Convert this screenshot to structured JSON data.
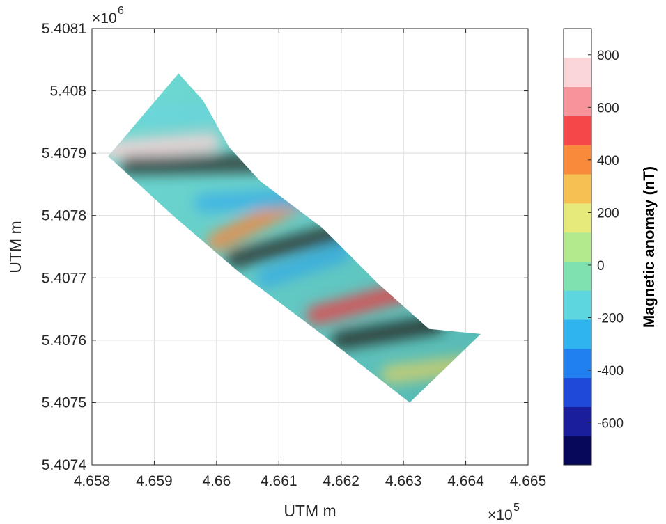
{
  "chart_data": {
    "type": "heatmap",
    "title": "",
    "xlabel": "UTM m",
    "ylabel": "UTM m",
    "x_exponent_base": "×10",
    "x_exponent_power": "5",
    "y_exponent_base": "×10",
    "y_exponent_power": "6",
    "xlim": [
      465800,
      466500
    ],
    "ylim": [
      5407400,
      5408100
    ],
    "x_ticks": [
      465800,
      465900,
      466000,
      466100,
      466200,
      466300,
      466400,
      466500
    ],
    "x_tick_labels": [
      "4.658",
      "4.659",
      "4.66",
      "4.661",
      "4.662",
      "4.663",
      "4.664",
      "4.665"
    ],
    "y_ticks": [
      5407400,
      5407500,
      5407600,
      5407700,
      5407800,
      5407900,
      5408000,
      5408100
    ],
    "y_tick_labels": [
      "5.4074",
      "5.4075",
      "5.4076",
      "5.4077",
      "5.4078",
      "5.4079",
      "5.408",
      "5.4081"
    ],
    "grid": true,
    "survey_outline_xy": [
      [
        465826,
        5407895
      ],
      [
        465939,
        5408028
      ],
      [
        465978,
        5407985
      ],
      [
        466020,
        5407910
      ],
      [
        466070,
        5407855
      ],
      [
        466170,
        5407780
      ],
      [
        466260,
        5407690
      ],
      [
        466341,
        5407618
      ],
      [
        466424,
        5407610
      ],
      [
        466310,
        5407500
      ],
      [
        466175,
        5407605
      ],
      [
        466035,
        5407710
      ],
      [
        465930,
        5407800
      ]
    ],
    "colorbar": {
      "label": "Magnetic anomay (nT)",
      "range": [
        -760,
        900
      ],
      "ticks": [
        -600,
        -400,
        -200,
        0,
        200,
        400,
        600,
        800
      ],
      "tick_labels": [
        "-600",
        "-400",
        "-200",
        "0",
        "200",
        "400",
        "600",
        "800"
      ],
      "colormap": [
        "#08085a",
        "#1b1e9c",
        "#1f49d8",
        "#2180ef",
        "#2fb4f0",
        "#5dd6df",
        "#7fe0b0",
        "#b4ea8e",
        "#e6ea7a",
        "#f6c053",
        "#f98a3c",
        "#f5474a",
        "#f7949a",
        "#fbd6d8",
        "#ffffff"
      ]
    },
    "bands": [
      {
        "from": [
          465830,
          5407905
        ],
        "to": [
          465990,
          5407918
        ],
        "value": 700
      },
      {
        "from": [
          465860,
          5407880
        ],
        "to": [
          466090,
          5407885
        ],
        "value": -680
      },
      {
        "from": [
          466000,
          5407758
        ],
        "to": [
          466160,
          5407838
        ],
        "value": 450
      },
      {
        "from": [
          466030,
          5407730
        ],
        "to": [
          466260,
          5407790
        ],
        "value": -700
      },
      {
        "from": [
          465890,
          5407960
        ],
        "to": [
          466010,
          5407965
        ],
        "value": -150
      },
      {
        "from": [
          465980,
          5407820
        ],
        "to": [
          466150,
          5407828
        ],
        "value": -220
      },
      {
        "from": [
          466080,
          5407700
        ],
        "to": [
          466200,
          5407740
        ],
        "value": -250
      },
      {
        "from": [
          466160,
          5407640
        ],
        "to": [
          466310,
          5407680
        ],
        "value": 500
      },
      {
        "from": [
          466200,
          5407600
        ],
        "to": [
          466350,
          5407625
        ],
        "value": -650
      },
      {
        "from": [
          466280,
          5407545
        ],
        "to": [
          466400,
          5407560
        ],
        "value": 150
      }
    ]
  }
}
